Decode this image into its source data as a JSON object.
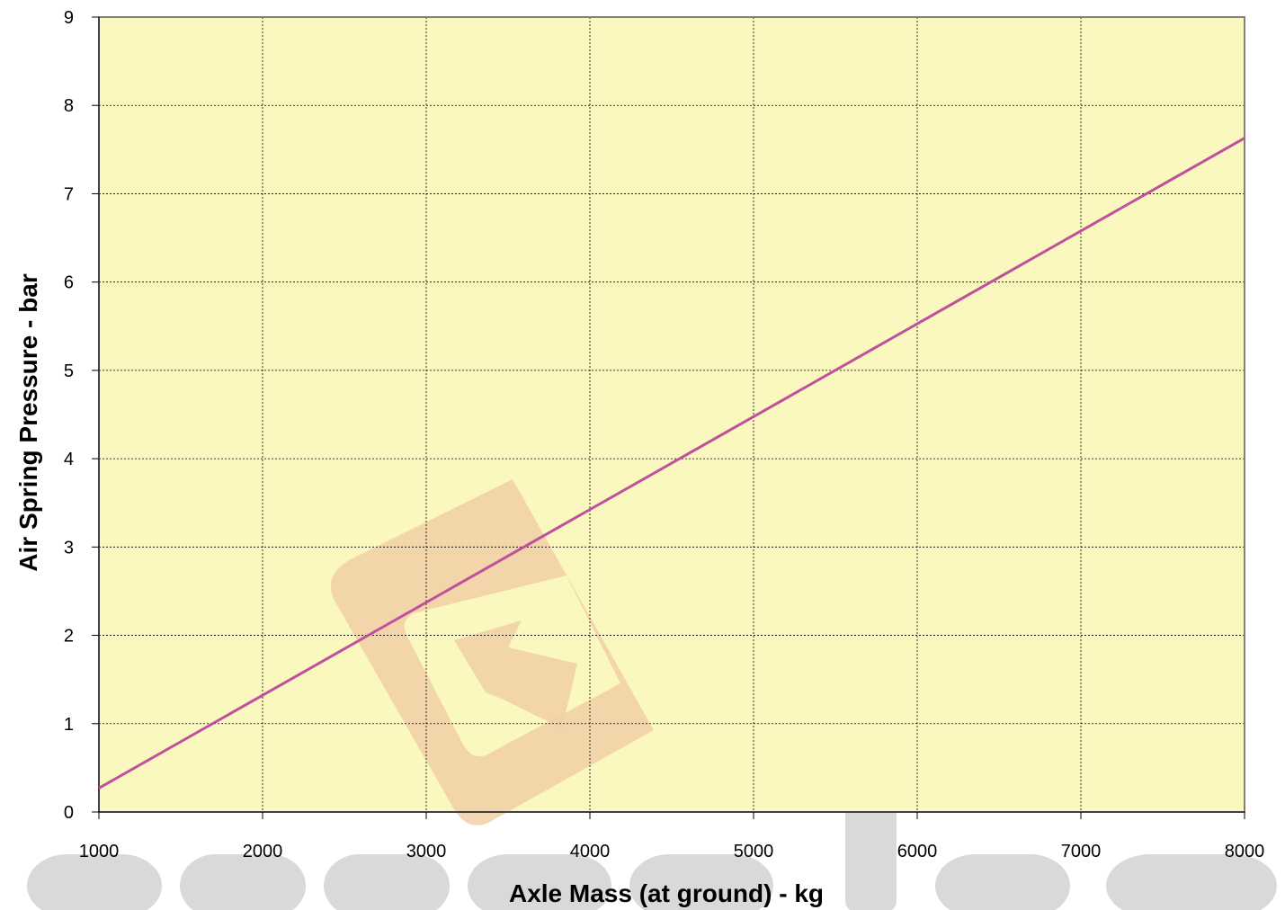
{
  "chart_data": {
    "type": "line",
    "title": "",
    "xlabel": "Axle Mass (at ground) - kg",
    "ylabel": "Air Spring Pressure - bar",
    "xlim": [
      1000,
      8000
    ],
    "ylim": [
      0,
      9
    ],
    "x_ticks": [
      "1000",
      "2000",
      "3000",
      "4000",
      "5000",
      "6000",
      "7000",
      "8000"
    ],
    "y_ticks": [
      "0",
      "1",
      "2",
      "3",
      "4",
      "5",
      "6",
      "7",
      "8",
      "9"
    ],
    "grid": true,
    "legend": "none",
    "series": [
      {
        "x": [
          1000,
          8000
        ],
        "y": [
          0.27,
          7.63
        ]
      }
    ]
  },
  "colors": {
    "plot_background": "#faf7bf",
    "line": "#c0509c",
    "grid": "#000000",
    "watermark_logo": "#f0c98e",
    "watermark_text": "#d4d4d4"
  },
  "watermark": {
    "text": "garagiga",
    "logo_icon": "arrow-logo-icon"
  }
}
